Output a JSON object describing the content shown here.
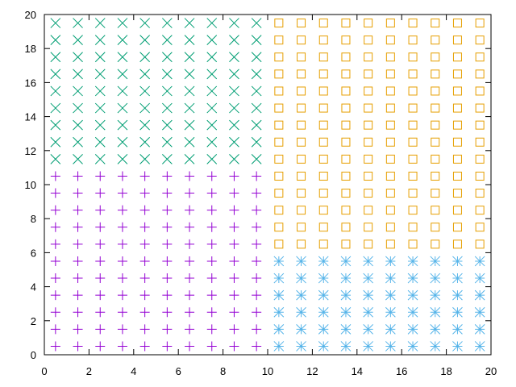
{
  "chart_data": {
    "type": "scatter",
    "xlim": [
      0,
      20
    ],
    "ylim": [
      0,
      20
    ],
    "xticks": [
      0,
      2,
      4,
      6,
      8,
      10,
      12,
      14,
      16,
      18,
      20
    ],
    "yticks": [
      0,
      2,
      4,
      6,
      8,
      10,
      12,
      14,
      16,
      18,
      20
    ],
    "series": [
      {
        "color": "#9400d3",
        "marker": "plus",
        "x": [
          0.5,
          1.5,
          2.5,
          3.5,
          4.5,
          5.5,
          6.5,
          7.5,
          8.5,
          9.5,
          0.5,
          1.5,
          2.5,
          3.5,
          4.5,
          5.5,
          6.5,
          7.5,
          8.5,
          9.5,
          0.5,
          1.5,
          2.5,
          3.5,
          4.5,
          5.5,
          6.5,
          7.5,
          8.5,
          9.5,
          0.5,
          1.5,
          2.5,
          3.5,
          4.5,
          5.5,
          6.5,
          7.5,
          8.5,
          9.5,
          0.5,
          1.5,
          2.5,
          3.5,
          4.5,
          5.5,
          6.5,
          7.5,
          8.5,
          9.5,
          0.5,
          1.5,
          2.5,
          3.5,
          4.5,
          5.5,
          6.5,
          7.5,
          8.5,
          9.5,
          0.5,
          1.5,
          2.5,
          3.5,
          4.5,
          5.5,
          6.5,
          7.5,
          8.5,
          9.5,
          0.5,
          1.5,
          2.5,
          3.5,
          4.5,
          5.5,
          6.5,
          7.5,
          8.5,
          9.5,
          0.5,
          1.5,
          2.5,
          3.5,
          4.5,
          5.5,
          6.5,
          7.5,
          8.5,
          9.5,
          0.5,
          1.5,
          2.5,
          3.5,
          4.5,
          5.5,
          6.5,
          7.5,
          8.5,
          9.5,
          0.5,
          1.5,
          2.5,
          3.5,
          4.5,
          5.5,
          6.5,
          7.5,
          8.5,
          9.5
        ],
        "y": [
          0.5,
          0.5,
          0.5,
          0.5,
          0.5,
          0.5,
          0.5,
          0.5,
          0.5,
          0.5,
          1.5,
          1.5,
          1.5,
          1.5,
          1.5,
          1.5,
          1.5,
          1.5,
          1.5,
          1.5,
          2.5,
          2.5,
          2.5,
          2.5,
          2.5,
          2.5,
          2.5,
          2.5,
          2.5,
          2.5,
          3.5,
          3.5,
          3.5,
          3.5,
          3.5,
          3.5,
          3.5,
          3.5,
          3.5,
          3.5,
          4.5,
          4.5,
          4.5,
          4.5,
          4.5,
          4.5,
          4.5,
          4.5,
          4.5,
          4.5,
          5.5,
          5.5,
          5.5,
          5.5,
          5.5,
          5.5,
          5.5,
          5.5,
          5.5,
          5.5,
          6.5,
          6.5,
          6.5,
          6.5,
          6.5,
          6.5,
          6.5,
          6.5,
          6.5,
          6.5,
          7.5,
          7.5,
          7.5,
          7.5,
          7.5,
          7.5,
          7.5,
          7.5,
          7.5,
          7.5,
          8.5,
          8.5,
          8.5,
          8.5,
          8.5,
          8.5,
          8.5,
          8.5,
          8.5,
          8.5,
          9.5,
          9.5,
          9.5,
          9.5,
          9.5,
          9.5,
          9.5,
          9.5,
          9.5,
          9.5,
          10.5,
          10.5,
          10.5,
          10.5,
          10.5,
          10.5,
          10.5,
          10.5,
          10.5,
          10.5
        ]
      },
      {
        "color": "#009e73",
        "marker": "cross",
        "x": [
          0.5,
          1.5,
          2.5,
          3.5,
          4.5,
          5.5,
          6.5,
          7.5,
          8.5,
          9.5,
          0.5,
          1.5,
          2.5,
          3.5,
          4.5,
          5.5,
          6.5,
          7.5,
          8.5,
          9.5,
          0.5,
          1.5,
          2.5,
          3.5,
          4.5,
          5.5,
          6.5,
          7.5,
          8.5,
          9.5,
          0.5,
          1.5,
          2.5,
          3.5,
          4.5,
          5.5,
          6.5,
          7.5,
          8.5,
          9.5,
          0.5,
          1.5,
          2.5,
          3.5,
          4.5,
          5.5,
          6.5,
          7.5,
          8.5,
          9.5,
          0.5,
          1.5,
          2.5,
          3.5,
          4.5,
          5.5,
          6.5,
          7.5,
          8.5,
          9.5,
          0.5,
          1.5,
          2.5,
          3.5,
          4.5,
          5.5,
          6.5,
          7.5,
          8.5,
          9.5,
          0.5,
          1.5,
          2.5,
          3.5,
          4.5,
          5.5,
          6.5,
          7.5,
          8.5,
          9.5,
          0.5,
          1.5,
          2.5,
          3.5,
          4.5,
          5.5,
          6.5,
          7.5,
          8.5,
          9.5
        ],
        "y": [
          11.5,
          11.5,
          11.5,
          11.5,
          11.5,
          11.5,
          11.5,
          11.5,
          11.5,
          11.5,
          12.5,
          12.5,
          12.5,
          12.5,
          12.5,
          12.5,
          12.5,
          12.5,
          12.5,
          12.5,
          13.5,
          13.5,
          13.5,
          13.5,
          13.5,
          13.5,
          13.5,
          13.5,
          13.5,
          13.5,
          14.5,
          14.5,
          14.5,
          14.5,
          14.5,
          14.5,
          14.5,
          14.5,
          14.5,
          14.5,
          15.5,
          15.5,
          15.5,
          15.5,
          15.5,
          15.5,
          15.5,
          15.5,
          15.5,
          15.5,
          16.5,
          16.5,
          16.5,
          16.5,
          16.5,
          16.5,
          16.5,
          16.5,
          16.5,
          16.5,
          17.5,
          17.5,
          17.5,
          17.5,
          17.5,
          17.5,
          17.5,
          17.5,
          17.5,
          17.5,
          18.5,
          18.5,
          18.5,
          18.5,
          18.5,
          18.5,
          18.5,
          18.5,
          18.5,
          18.5,
          19.5,
          19.5,
          19.5,
          19.5,
          19.5,
          19.5,
          19.5,
          19.5,
          19.5,
          19.5
        ]
      },
      {
        "color": "#56b4e9",
        "marker": "star",
        "x": [
          10.5,
          11.5,
          12.5,
          13.5,
          14.5,
          15.5,
          16.5,
          17.5,
          18.5,
          19.5,
          10.5,
          11.5,
          12.5,
          13.5,
          14.5,
          15.5,
          16.5,
          17.5,
          18.5,
          19.5,
          10.5,
          11.5,
          12.5,
          13.5,
          14.5,
          15.5,
          16.5,
          17.5,
          18.5,
          19.5,
          10.5,
          11.5,
          12.5,
          13.5,
          14.5,
          15.5,
          16.5,
          17.5,
          18.5,
          19.5,
          10.5,
          11.5,
          12.5,
          13.5,
          14.5,
          15.5,
          16.5,
          17.5,
          18.5,
          19.5,
          10.5,
          11.5,
          12.5,
          13.5,
          14.5,
          15.5,
          16.5,
          17.5,
          18.5,
          19.5
        ],
        "y": [
          0.5,
          0.5,
          0.5,
          0.5,
          0.5,
          0.5,
          0.5,
          0.5,
          0.5,
          0.5,
          1.5,
          1.5,
          1.5,
          1.5,
          1.5,
          1.5,
          1.5,
          1.5,
          1.5,
          1.5,
          2.5,
          2.5,
          2.5,
          2.5,
          2.5,
          2.5,
          2.5,
          2.5,
          2.5,
          2.5,
          3.5,
          3.5,
          3.5,
          3.5,
          3.5,
          3.5,
          3.5,
          3.5,
          3.5,
          3.5,
          4.5,
          4.5,
          4.5,
          4.5,
          4.5,
          4.5,
          4.5,
          4.5,
          4.5,
          4.5,
          5.5,
          5.5,
          5.5,
          5.5,
          5.5,
          5.5,
          5.5,
          5.5,
          5.5,
          5.5
        ]
      },
      {
        "color": "#e69f00",
        "marker": "square",
        "x": [
          10.5,
          11.5,
          12.5,
          13.5,
          14.5,
          15.5,
          16.5,
          17.5,
          18.5,
          19.5,
          10.5,
          11.5,
          12.5,
          13.5,
          14.5,
          15.5,
          16.5,
          17.5,
          18.5,
          19.5,
          10.5,
          11.5,
          12.5,
          13.5,
          14.5,
          15.5,
          16.5,
          17.5,
          18.5,
          19.5,
          10.5,
          11.5,
          12.5,
          13.5,
          14.5,
          15.5,
          16.5,
          17.5,
          18.5,
          19.5,
          10.5,
          11.5,
          12.5,
          13.5,
          14.5,
          15.5,
          16.5,
          17.5,
          18.5,
          19.5,
          10.5,
          11.5,
          12.5,
          13.5,
          14.5,
          15.5,
          16.5,
          17.5,
          18.5,
          19.5,
          10.5,
          11.5,
          12.5,
          13.5,
          14.5,
          15.5,
          16.5,
          17.5,
          18.5,
          19.5,
          10.5,
          11.5,
          12.5,
          13.5,
          14.5,
          15.5,
          16.5,
          17.5,
          18.5,
          19.5,
          10.5,
          11.5,
          12.5,
          13.5,
          14.5,
          15.5,
          16.5,
          17.5,
          18.5,
          19.5,
          10.5,
          11.5,
          12.5,
          13.5,
          14.5,
          15.5,
          16.5,
          17.5,
          18.5,
          19.5,
          10.5,
          11.5,
          12.5,
          13.5,
          14.5,
          15.5,
          16.5,
          17.5,
          18.5,
          19.5,
          10.5,
          11.5,
          12.5,
          13.5,
          14.5,
          15.5,
          16.5,
          17.5,
          18.5,
          19.5,
          10.5,
          11.5,
          12.5,
          13.5,
          14.5,
          15.5,
          16.5,
          17.5,
          18.5,
          19.5,
          10.5,
          11.5,
          12.5,
          13.5,
          14.5,
          15.5,
          16.5,
          17.5,
          18.5,
          19.5
        ],
        "y": [
          6.5,
          6.5,
          6.5,
          6.5,
          6.5,
          6.5,
          6.5,
          6.5,
          6.5,
          6.5,
          7.5,
          7.5,
          7.5,
          7.5,
          7.5,
          7.5,
          7.5,
          7.5,
          7.5,
          7.5,
          8.5,
          8.5,
          8.5,
          8.5,
          8.5,
          8.5,
          8.5,
          8.5,
          8.5,
          8.5,
          9.5,
          9.5,
          9.5,
          9.5,
          9.5,
          9.5,
          9.5,
          9.5,
          9.5,
          9.5,
          10.5,
          10.5,
          10.5,
          10.5,
          10.5,
          10.5,
          10.5,
          10.5,
          10.5,
          10.5,
          11.5,
          11.5,
          11.5,
          11.5,
          11.5,
          11.5,
          11.5,
          11.5,
          11.5,
          11.5,
          12.5,
          12.5,
          12.5,
          12.5,
          12.5,
          12.5,
          12.5,
          12.5,
          12.5,
          12.5,
          13.5,
          13.5,
          13.5,
          13.5,
          13.5,
          13.5,
          13.5,
          13.5,
          13.5,
          13.5,
          14.5,
          14.5,
          14.5,
          14.5,
          14.5,
          14.5,
          14.5,
          14.5,
          14.5,
          14.5,
          15.5,
          15.5,
          15.5,
          15.5,
          15.5,
          15.5,
          15.5,
          15.5,
          15.5,
          15.5,
          16.5,
          16.5,
          16.5,
          16.5,
          16.5,
          16.5,
          16.5,
          16.5,
          16.5,
          16.5,
          17.5,
          17.5,
          17.5,
          17.5,
          17.5,
          17.5,
          17.5,
          17.5,
          17.5,
          17.5,
          18.5,
          18.5,
          18.5,
          18.5,
          18.5,
          18.5,
          18.5,
          18.5,
          18.5,
          18.5,
          19.5,
          19.5,
          19.5,
          19.5,
          19.5,
          19.5,
          19.5,
          19.5,
          19.5,
          19.5
        ]
      }
    ]
  }
}
